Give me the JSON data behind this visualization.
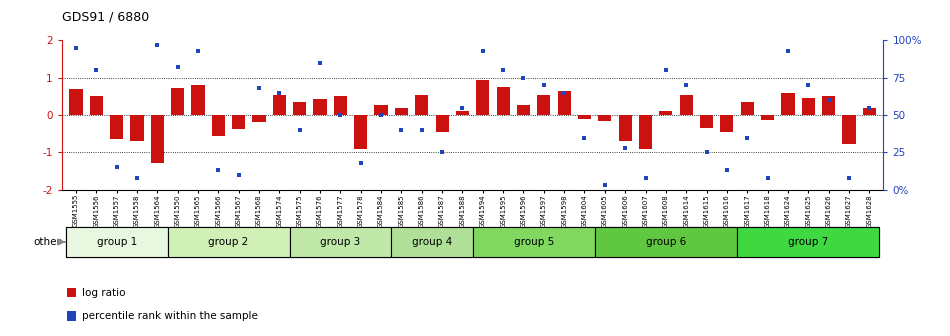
{
  "title": "GDS91 / 6880",
  "samples": [
    "GSM1555",
    "GSM1556",
    "GSM1557",
    "GSM1558",
    "GSM1564",
    "GSM1550",
    "GSM1565",
    "GSM1566",
    "GSM1567",
    "GSM1568",
    "GSM1574",
    "GSM1575",
    "GSM1576",
    "GSM1577",
    "GSM1578",
    "GSM1584",
    "GSM1585",
    "GSM1586",
    "GSM1587",
    "GSM1588",
    "GSM1594",
    "GSM1595",
    "GSM1596",
    "GSM1597",
    "GSM1598",
    "GSM1604",
    "GSM1605",
    "GSM1606",
    "GSM1607",
    "GSM1608",
    "GSM1614",
    "GSM1615",
    "GSM1616",
    "GSM1617",
    "GSM1618",
    "GSM1624",
    "GSM1625",
    "GSM1626",
    "GSM1627",
    "GSM1628"
  ],
  "log_ratio": [
    0.7,
    0.5,
    -0.65,
    -0.7,
    -1.28,
    0.72,
    0.8,
    -0.55,
    -0.38,
    -0.18,
    0.55,
    0.35,
    0.42,
    0.5,
    -0.9,
    0.28,
    0.2,
    0.55,
    -0.45,
    0.1,
    0.95,
    0.75,
    0.28,
    0.55,
    0.65,
    -0.1,
    -0.15,
    -0.7,
    -0.92,
    0.1,
    0.55,
    -0.35,
    -0.45,
    0.35,
    -0.12,
    0.6,
    0.45,
    0.5,
    -0.78,
    0.18
  ],
  "percentile": [
    95,
    80,
    15,
    8,
    97,
    82,
    93,
    13,
    10,
    68,
    65,
    40,
    85,
    50,
    18,
    50,
    40,
    40,
    25,
    55,
    93,
    80,
    75,
    70,
    65,
    35,
    3,
    28,
    8,
    80,
    70,
    25,
    13,
    35,
    8,
    93,
    70,
    60,
    8,
    55
  ],
  "groups": [
    {
      "name": "group 1",
      "start": 0,
      "end": 4,
      "color": "#e8f8e0"
    },
    {
      "name": "group 2",
      "start": 5,
      "end": 10,
      "color": "#d0f0b8"
    },
    {
      "name": "group 3",
      "start": 11,
      "end": 15,
      "color": "#c0e8a8"
    },
    {
      "name": "group 4",
      "start": 16,
      "end": 19,
      "color": "#b0e098"
    },
    {
      "name": "group 5",
      "start": 20,
      "end": 25,
      "color": "#80d860"
    },
    {
      "name": "group 6",
      "start": 26,
      "end": 32,
      "color": "#60c840"
    },
    {
      "name": "group 7",
      "start": 33,
      "end": 39,
      "color": "#40d840"
    }
  ],
  "bar_color": "#cc1111",
  "dot_color": "#2244bb",
  "ylim_left": [
    -2.0,
    2.0
  ],
  "ylim_right": [
    0,
    100
  ],
  "yticks_left": [
    -2,
    -1,
    0,
    1,
    2
  ],
  "yticks_right": [
    0,
    25,
    50,
    75,
    100
  ],
  "ytick_labels_right": [
    "0%",
    "25",
    "50",
    "75",
    "100%"
  ],
  "hlines": [
    -1.0,
    0.0,
    1.0
  ],
  "legend_log": "log ratio",
  "legend_pct": "percentile rank within the sample",
  "other_label": "other",
  "bg_color": "#ffffff"
}
